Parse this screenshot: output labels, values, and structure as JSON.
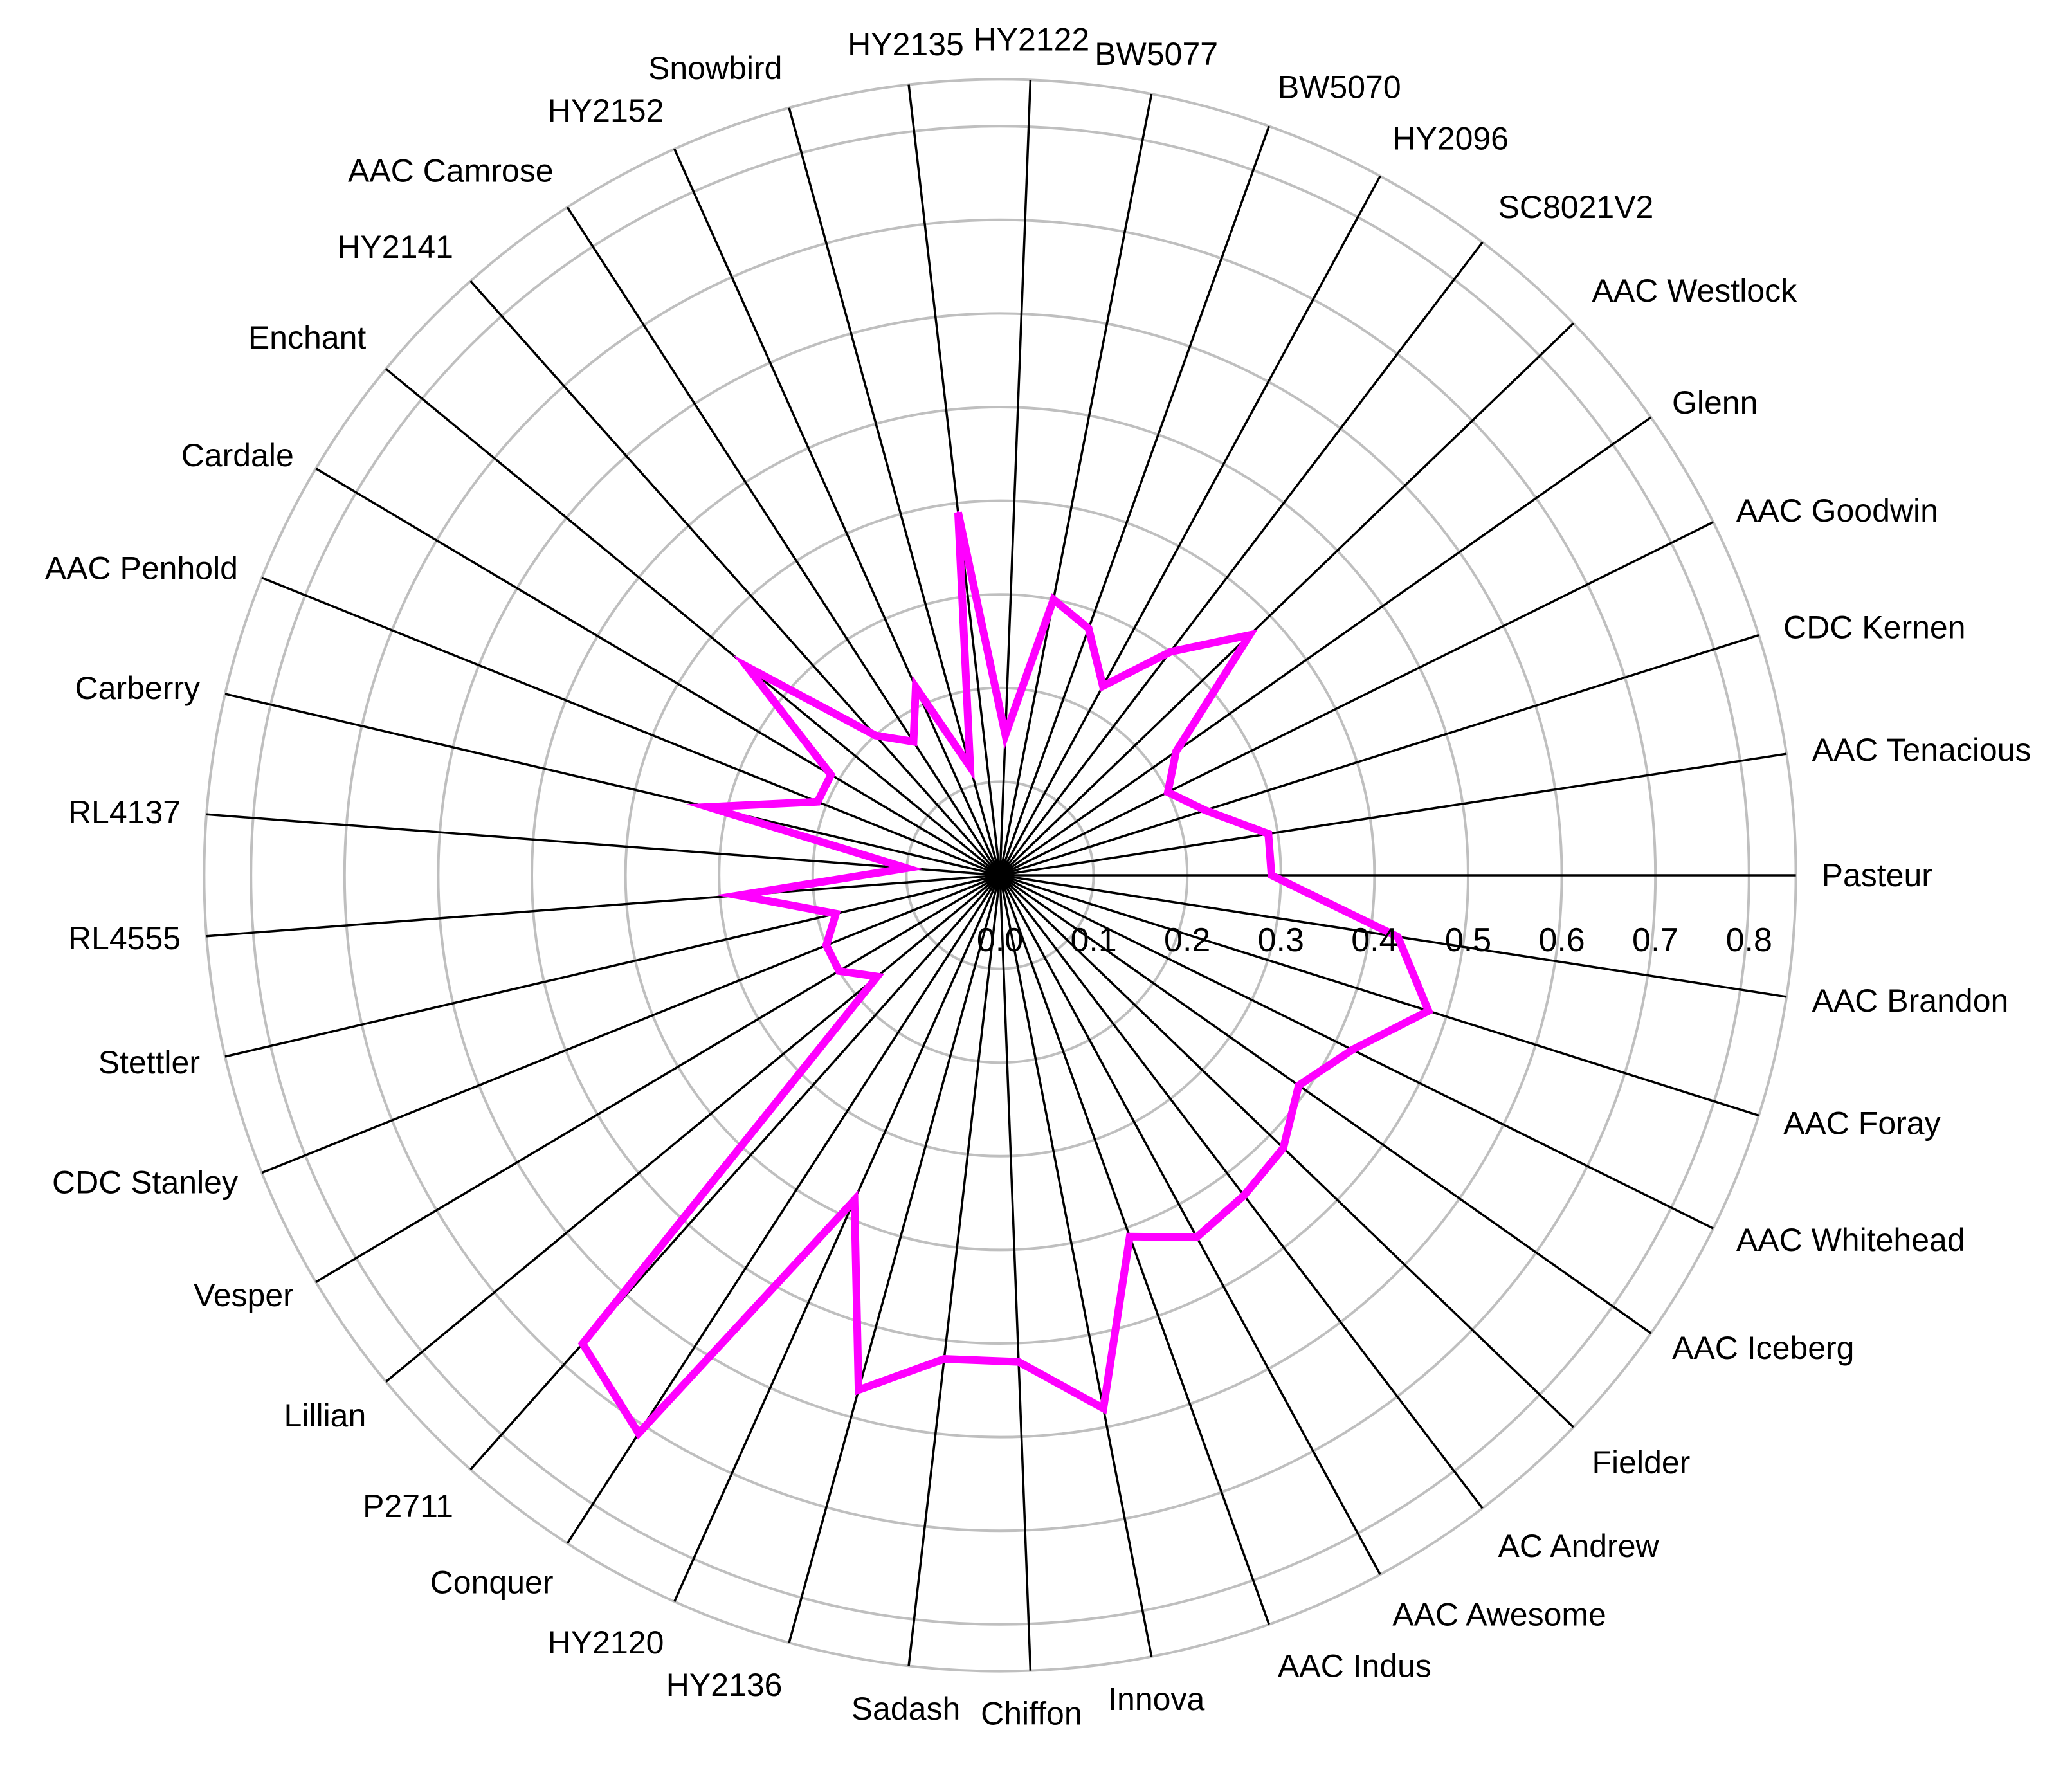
{
  "chart_data": {
    "type": "radar",
    "title": "",
    "categories": [
      "Pasteur",
      "AAC Brandon",
      "AAC Foray",
      "AAC Whitehead",
      "AAC Iceberg",
      "Fielder",
      "AC Andrew",
      "AAC Awesome",
      "AAC Indus",
      "Innova",
      "Chiffon",
      "Sadash",
      "HY2136",
      "HY2120",
      "Conquer",
      "P2711",
      "Lillian",
      "Vesper",
      "CDC Stanley",
      "Stettler",
      "RL4555",
      "RL4137",
      "Carberry",
      "AAC Penhold",
      "Cardale",
      "Enchant",
      "HY2141",
      "AAC Camrose",
      "HY2152",
      "Snowbird",
      "HY2135",
      "HY2122",
      "BW5077",
      "BW5070",
      "HY2096",
      "SC8021V2",
      "AAC Westlock",
      "Glenn",
      "AAC Goodwin",
      "CDC Kernen",
      "AAC Tenacious"
    ],
    "series": [
      {
        "color": "#ff00ff",
        "values": [
          0.29,
          0.43,
          0.48,
          0.42,
          0.39,
          0.42,
          0.43,
          0.44,
          0.41,
          0.58,
          0.52,
          0.52,
          0.57,
          0.38,
          0.71,
          0.67,
          0.17,
          0.2,
          0.2,
          0.18,
          0.28,
          0.1,
          0.32,
          0.21,
          0.21,
          0.35,
          0.2,
          0.17,
          0.22,
          0.12,
          0.39,
          0.15,
          0.3,
          0.28,
          0.23,
          0.3,
          0.37,
          0.23,
          0.2,
          0.23,
          0.29
        ]
      }
    ],
    "radial_axis": {
      "ticks": [
        0.0,
        0.1,
        0.2,
        0.3,
        0.4,
        0.5,
        0.6,
        0.7,
        0.8
      ],
      "tick_labels": [
        "0.0",
        "0.1",
        "0.2",
        "0.3",
        "0.4",
        "0.5",
        "0.6",
        "0.7",
        "0.8"
      ],
      "range": [
        0,
        0.85
      ]
    },
    "grid": true,
    "legend": "none",
    "colors": {
      "spoke": "#000000",
      "grid": "#bfbfbf",
      "series": "#ff00ff"
    }
  }
}
